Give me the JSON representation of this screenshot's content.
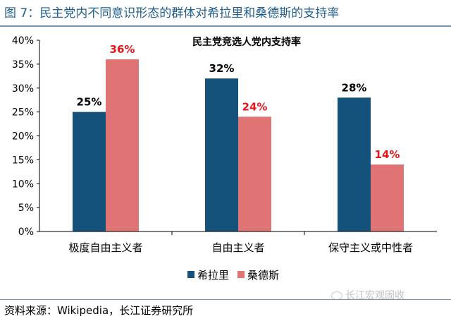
{
  "figure_title": "图 7：民主党内不同意识形态的群体对希拉里和桑德斯的支持率",
  "source_note": "资料来源：Wikipedia，长江证券研究所",
  "watermark": "长江宏观固收",
  "colors": {
    "hillary": "#14527c",
    "sanders": "#e07373",
    "label_sanders": "#e8151b",
    "title_blue": "#1f5f8f"
  },
  "chart_data": {
    "type": "bar",
    "title": "民主党竞选人党内支持率",
    "categories": [
      "极度自由主义者",
      "自由主义者",
      "保守主义或中性者"
    ],
    "series": [
      {
        "name": "希拉里",
        "values": [
          25,
          32,
          28
        ]
      },
      {
        "name": "桑德斯",
        "values": [
          36,
          24,
          14
        ]
      }
    ],
    "data_labels": [
      [
        "25%",
        "32%",
        "28%"
      ],
      [
        "36%",
        "24%",
        "14%"
      ]
    ],
    "y_ticks": [
      "0%",
      "5%",
      "10%",
      "15%",
      "20%",
      "25%",
      "30%",
      "35%",
      "40%"
    ],
    "ylim": [
      0,
      40
    ],
    "grid": false,
    "legend_position": "bottom"
  }
}
